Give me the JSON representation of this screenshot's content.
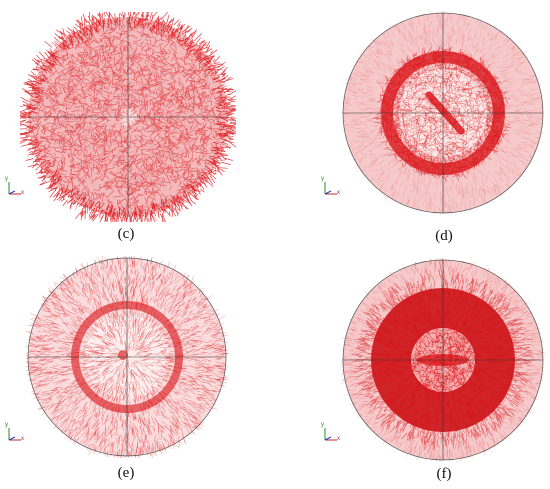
{
  "panels": [
    {
      "id": "c",
      "caption": "(c)"
    },
    {
      "id": "d",
      "caption": "(d)"
    },
    {
      "id": "e",
      "caption": "(e)"
    },
    {
      "id": "f",
      "caption": "(f)"
    }
  ],
  "axis_labels": {
    "y": "y",
    "x": "x"
  },
  "colors": {
    "vector": "#d90f14",
    "dense": "#c8080d",
    "light": "#f6c9ca",
    "outline": "#555555"
  }
}
